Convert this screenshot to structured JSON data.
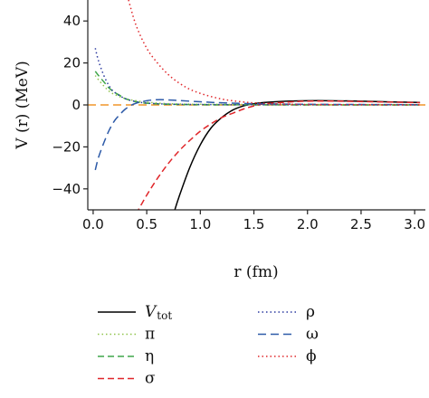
{
  "chart_data": {
    "type": "line",
    "xlabel": "r (fm)",
    "ylabel": "V (r) (MeV)",
    "xlim": [
      -0.05,
      3.1
    ],
    "ylim": [
      -50,
      50
    ],
    "xticks": [
      0.0,
      0.5,
      1.0,
      1.5,
      2.0,
      2.5,
      3.0
    ],
    "xtick_labels": [
      "0.0",
      "0.5",
      "1.0",
      "1.5",
      "2.0",
      "2.5",
      "3.0"
    ],
    "yticks": [
      -40,
      -20,
      0,
      20,
      40
    ],
    "ytick_labels": [
      "−40",
      "−20",
      "0",
      "20",
      "40"
    ],
    "grid": false,
    "legend_position": "bottom",
    "series": [
      {
        "name": "V",
        "name_sub": "tot",
        "color": "#000000",
        "dash": "solid",
        "points": [
          [
            0.75,
            -52
          ],
          [
            0.8,
            -44
          ],
          [
            0.9,
            -30
          ],
          [
            1.0,
            -19
          ],
          [
            1.1,
            -11
          ],
          [
            1.2,
            -6
          ],
          [
            1.3,
            -2.5
          ],
          [
            1.4,
            -0.5
          ],
          [
            1.5,
            0.6
          ],
          [
            1.6,
            1.2
          ],
          [
            1.8,
            1.8
          ],
          [
            2.0,
            2.0
          ],
          [
            2.2,
            2.0
          ],
          [
            2.5,
            1.8
          ],
          [
            2.8,
            1.4
          ],
          [
            3.05,
            1.2
          ]
        ]
      },
      {
        "name": "π",
        "color": "#8fc34a",
        "dash": "1.5,3",
        "points": [
          [
            0.02,
            14
          ],
          [
            0.05,
            12
          ],
          [
            0.1,
            9
          ],
          [
            0.15,
            6.5
          ],
          [
            0.2,
            5
          ],
          [
            0.3,
            3
          ],
          [
            0.4,
            2
          ],
          [
            0.5,
            1.3
          ],
          [
            0.7,
            0.6
          ],
          [
            1.0,
            0.3
          ],
          [
            1.5,
            0.2
          ],
          [
            2.0,
            0.2
          ],
          [
            3.05,
            0.1
          ]
        ]
      },
      {
        "name": "η",
        "color": "#3fa54a",
        "dash": "7,4",
        "points": [
          [
            0.02,
            16
          ],
          [
            0.05,
            14
          ],
          [
            0.1,
            11
          ],
          [
            0.15,
            8
          ],
          [
            0.2,
            6
          ],
          [
            0.25,
            4.5
          ],
          [
            0.3,
            3
          ],
          [
            0.4,
            1.5
          ],
          [
            0.5,
            0.8
          ],
          [
            0.7,
            0.3
          ],
          [
            1.0,
            0.1
          ],
          [
            1.5,
            0.05
          ],
          [
            3.05,
            0.0
          ]
        ]
      },
      {
        "name": "σ",
        "color": "#e0262a",
        "dash": "7,4",
        "points": [
          [
            0.4,
            -52
          ],
          [
            0.5,
            -43
          ],
          [
            0.6,
            -35
          ],
          [
            0.7,
            -28
          ],
          [
            0.8,
            -22
          ],
          [
            0.9,
            -17
          ],
          [
            1.0,
            -12.5
          ],
          [
            1.1,
            -9
          ],
          [
            1.2,
            -6
          ],
          [
            1.3,
            -4
          ],
          [
            1.4,
            -2
          ],
          [
            1.5,
            -0.5
          ],
          [
            1.6,
            0.5
          ],
          [
            1.8,
            1.3
          ],
          [
            2.0,
            1.8
          ],
          [
            2.3,
            1.8
          ],
          [
            2.6,
            1.5
          ],
          [
            3.05,
            1.1
          ]
        ]
      },
      {
        "name": "ρ",
        "color": "#2b3aa0",
        "dash": "1.5,3",
        "points": [
          [
            0.02,
            27
          ],
          [
            0.05,
            21
          ],
          [
            0.1,
            14
          ],
          [
            0.15,
            9
          ],
          [
            0.2,
            6
          ],
          [
            0.3,
            3
          ],
          [
            0.4,
            1.6
          ],
          [
            0.5,
            0.9
          ],
          [
            0.7,
            0.4
          ],
          [
            1.0,
            0.2
          ],
          [
            1.5,
            0.1
          ],
          [
            3.05,
            0.05
          ]
        ]
      },
      {
        "name": "ω",
        "color": "#2d5aa8",
        "dash": "9,5",
        "points": [
          [
            0.02,
            -31
          ],
          [
            0.05,
            -25
          ],
          [
            0.1,
            -18
          ],
          [
            0.15,
            -12
          ],
          [
            0.2,
            -7.5
          ],
          [
            0.25,
            -4.5
          ],
          [
            0.3,
            -2
          ],
          [
            0.35,
            -0.3
          ],
          [
            0.4,
            0.8
          ],
          [
            0.5,
            2
          ],
          [
            0.6,
            2.5
          ],
          [
            0.7,
            2.4
          ],
          [
            0.8,
            2.1
          ],
          [
            1.0,
            1.5
          ],
          [
            1.2,
            1.0
          ],
          [
            1.5,
            0.6
          ],
          [
            2.0,
            0.3
          ],
          [
            3.05,
            0.1
          ]
        ]
      },
      {
        "name": "ϕ",
        "color": "#e0262a",
        "dash": "1.5,3",
        "points": [
          [
            0.33,
            50
          ],
          [
            0.4,
            38
          ],
          [
            0.5,
            27
          ],
          [
            0.6,
            20
          ],
          [
            0.7,
            14.5
          ],
          [
            0.8,
            10.5
          ],
          [
            0.9,
            7.5
          ],
          [
            1.0,
            5.5
          ],
          [
            1.1,
            4
          ],
          [
            1.2,
            2.8
          ],
          [
            1.3,
            2
          ],
          [
            1.4,
            1.4
          ],
          [
            1.5,
            1.0
          ],
          [
            1.7,
            0.5
          ],
          [
            2.0,
            0.2
          ],
          [
            2.5,
            0.1
          ],
          [
            3.05,
            0.05
          ]
        ]
      }
    ],
    "baseline": {
      "color": "#f0952a",
      "dash": "9,5",
      "y": 0
    }
  },
  "legend": {
    "left": [
      {
        "symbol": "V",
        "sub": "tot",
        "series_index": 0
      },
      {
        "symbol": "π",
        "series_index": 1
      },
      {
        "symbol": "η",
        "series_index": 2
      },
      {
        "symbol": "σ",
        "series_index": 3
      }
    ],
    "right": [
      {
        "symbol": "ρ",
        "series_index": 4
      },
      {
        "symbol": "ω",
        "series_index": 5
      },
      {
        "symbol": "ϕ",
        "series_index": 6
      }
    ]
  }
}
